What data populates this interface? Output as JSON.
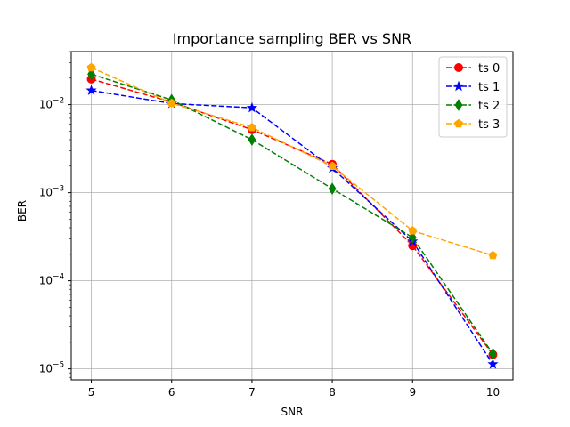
{
  "chart_data": {
    "type": "line",
    "title": "Importance sampling BER vs SNR",
    "xlabel": "SNR",
    "ylabel": "BER",
    "x": [
      5,
      6,
      7,
      8,
      9,
      10
    ],
    "xlim": [
      4.75,
      10.25
    ],
    "ylim": [
      7.5e-06,
      0.04
    ],
    "y_scale": "log",
    "grid": true,
    "legend_position": "top-right",
    "x_ticks": [
      "5",
      "6",
      "7",
      "8",
      "9",
      "10"
    ],
    "y_ticks": [
      {
        "value": 1e-05,
        "label": "10",
        "exp": "−5"
      },
      {
        "value": 0.0001,
        "label": "10",
        "exp": "−4"
      },
      {
        "value": 0.001,
        "label": "10",
        "exp": "−3"
      },
      {
        "value": 0.01,
        "label": "10",
        "exp": "−2"
      }
    ],
    "series": [
      {
        "name": "ts 0",
        "color": "#ff0000",
        "marker": "circle",
        "values": [
          0.0195,
          0.0107,
          0.0052,
          0.0021,
          0.00025,
          1.45e-05
        ]
      },
      {
        "name": "ts 1",
        "color": "#0000ff",
        "marker": "star",
        "values": [
          0.0145,
          0.0103,
          0.0092,
          0.0019,
          0.00028,
          1.13e-05
        ]
      },
      {
        "name": "ts 2",
        "color": "#008000",
        "marker": "diamond",
        "values": [
          0.0222,
          0.0113,
          0.004,
          0.00111,
          0.00031,
          1.48e-05
        ]
      },
      {
        "name": "ts 3",
        "color": "#ffa500",
        "marker": "pentagon",
        "values": [
          0.0263,
          0.0104,
          0.0055,
          0.002,
          0.00037,
          0.000194
        ]
      }
    ]
  }
}
